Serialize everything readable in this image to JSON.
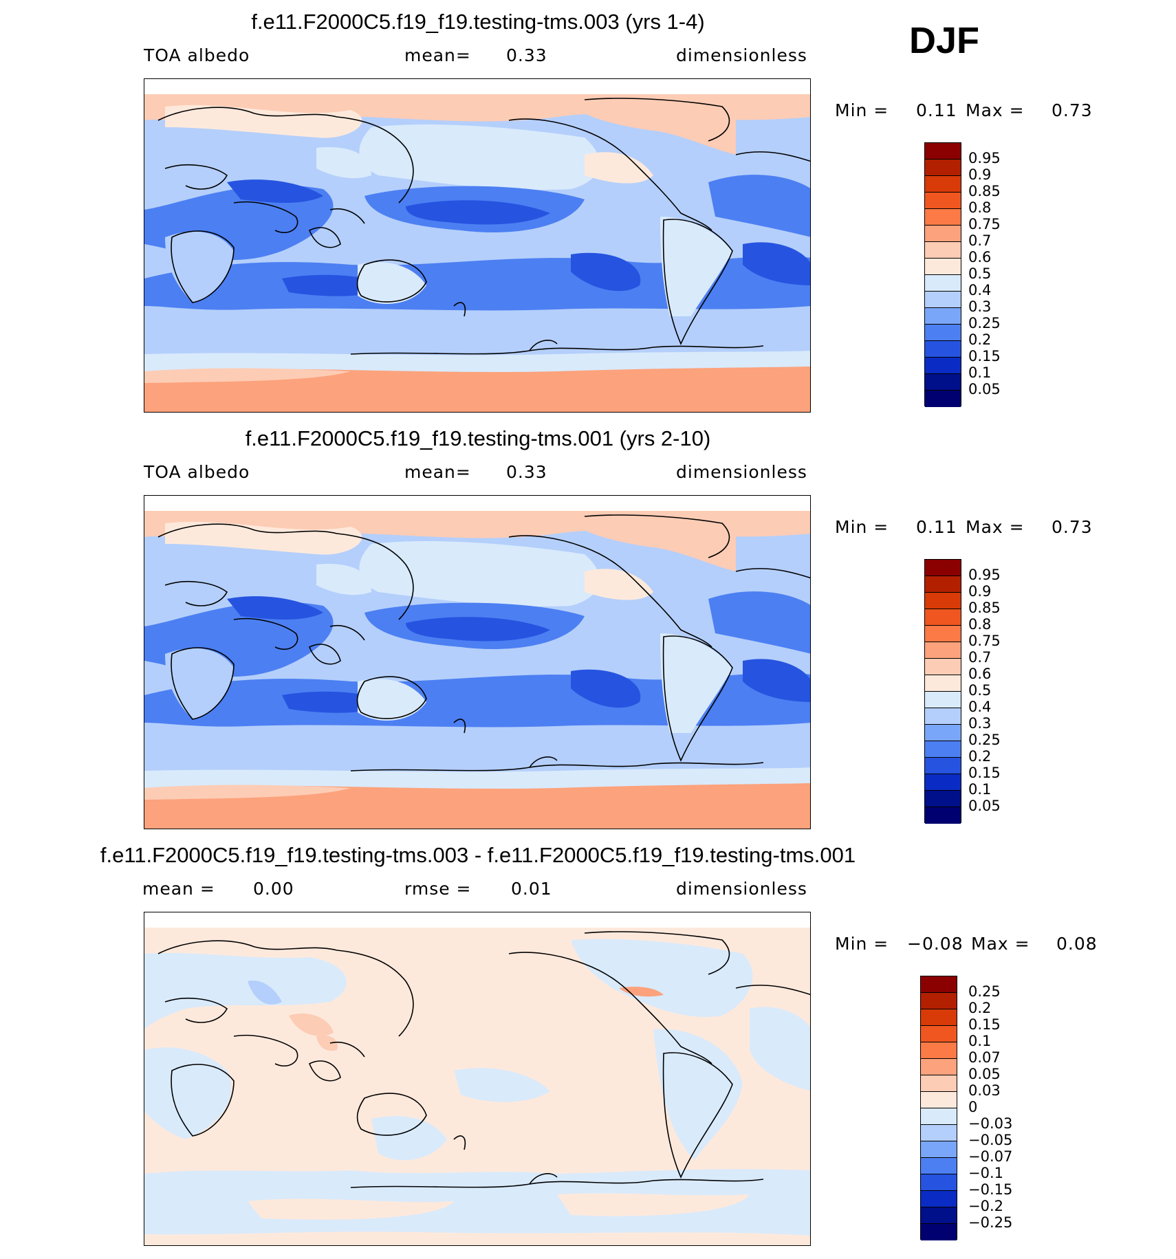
{
  "season": "DJF",
  "panels": [
    {
      "title": "f.e11.F2000C5.f19_f19.testing-tms.003 (yrs 1-4)",
      "variable": "TOA albedo",
      "stat1_label": "mean=",
      "stat1_value": "0.33",
      "stat2_label": "",
      "stat2_value": "",
      "units": "dimensionless",
      "min_label": "Min =",
      "min_value": "0.11",
      "max_label": "Max =",
      "max_value": "0.73",
      "colorbar": {
        "levels": [
          "0.95",
          "0.9",
          "0.85",
          "0.8",
          "0.75",
          "0.7",
          "0.6",
          "0.5",
          "0.4",
          "0.3",
          "0.25",
          "0.2",
          "0.15",
          "0.1",
          "0.05"
        ],
        "colors": [
          "#8b0000",
          "#b22000",
          "#d83a08",
          "#f0561f",
          "#fb7a45",
          "#fca27c",
          "#fdccb5",
          "#fde9dc",
          "#d9eafb",
          "#b4cffb",
          "#7aa6f9",
          "#4c7ff2",
          "#2654e0",
          "#0a2cc4",
          "#000f8a",
          "#000070"
        ]
      }
    },
    {
      "title": "f.e11.F2000C5.f19_f19.testing-tms.001 (yrs 2-10)",
      "variable": "TOA albedo",
      "stat1_label": "mean=",
      "stat1_value": "0.33",
      "stat2_label": "",
      "stat2_value": "",
      "units": "dimensionless",
      "min_label": "Min =",
      "min_value": "0.11",
      "max_label": "Max =",
      "max_value": "0.73",
      "colorbar": {
        "levels": [
          "0.95",
          "0.9",
          "0.85",
          "0.8",
          "0.75",
          "0.7",
          "0.6",
          "0.5",
          "0.4",
          "0.3",
          "0.25",
          "0.2",
          "0.15",
          "0.1",
          "0.05"
        ],
        "colors": [
          "#8b0000",
          "#b22000",
          "#d83a08",
          "#f0561f",
          "#fb7a45",
          "#fca27c",
          "#fdccb5",
          "#fde9dc",
          "#d9eafb",
          "#b4cffb",
          "#7aa6f9",
          "#4c7ff2",
          "#2654e0",
          "#0a2cc4",
          "#000f8a",
          "#000070"
        ]
      }
    },
    {
      "title": "f.e11.F2000C5.f19_f19.testing-tms.003 - f.e11.F2000C5.f19_f19.testing-tms.001",
      "variable": "",
      "stat1_label": "mean =",
      "stat1_value": "0.00",
      "stat2_label": "rmse =",
      "stat2_value": "0.01",
      "units": "dimensionless",
      "min_label": "Min =",
      "min_value": "−0.08",
      "max_label": "Max =",
      "max_value": "0.08",
      "colorbar": {
        "levels": [
          "0.25",
          "0.2",
          "0.15",
          "0.1",
          "0.07",
          "0.05",
          "0.03",
          "0",
          "−0.03",
          "−0.05",
          "−0.07",
          "−0.1",
          "−0.15",
          "−0.2",
          "−0.25"
        ],
        "colors": [
          "#8b0000",
          "#b22000",
          "#d83a08",
          "#f0561f",
          "#fb7a45",
          "#fca27c",
          "#fdccb5",
          "#fde9dc",
          "#d9eafb",
          "#b4cffb",
          "#7aa6f9",
          "#4c7ff2",
          "#2654e0",
          "#0a2cc4",
          "#000f8a",
          "#000070"
        ]
      }
    }
  ]
}
